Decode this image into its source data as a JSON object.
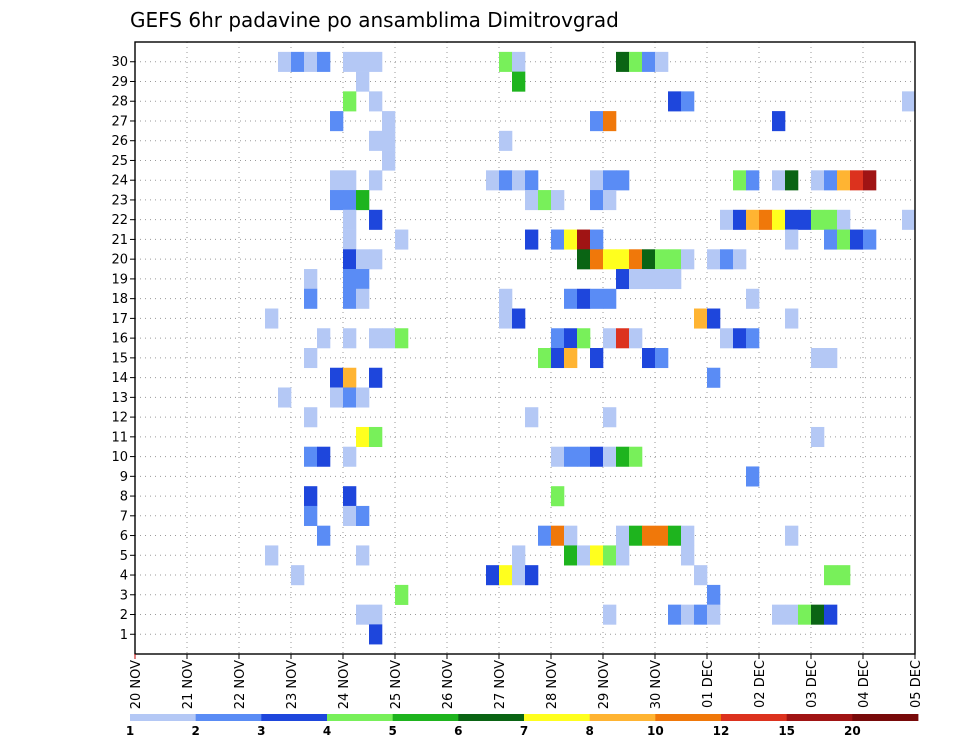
{
  "chart_data": {
    "type": "heatmap",
    "title": "GEFS 6hr padavine po ansamblima Dimitrovgrad",
    "y_ticks": [
      "1",
      "2",
      "3",
      "4",
      "5",
      "6",
      "7",
      "8",
      "9",
      "10",
      "11",
      "12",
      "13",
      "14",
      "15",
      "16",
      "17",
      "18",
      "19",
      "20",
      "21",
      "22",
      "23",
      "24",
      "25",
      "26",
      "27",
      "28",
      "29",
      "30"
    ],
    "x_ticks": [
      "20 NOV",
      "21 NOV",
      "22 NOV",
      "23 NOV",
      "24 NOV",
      "25 NOV",
      "26 NOV",
      "27 NOV",
      "28 NOV",
      "29 NOV",
      "30 NOV",
      "01 DEC",
      "02 DEC",
      "03 DEC",
      "04 DEC",
      "05 DEC"
    ],
    "xlim": [
      "20 NOV 00Z",
      "05 DEC 00Z"
    ],
    "ylim": [
      0,
      30
    ],
    "grid": true,
    "colorbar": {
      "bounds": [
        "1",
        "2",
        "3",
        "4",
        "5",
        "6",
        "7",
        "8",
        "10",
        "12",
        "15",
        "20"
      ],
      "colors": [
        "#b4c8f5",
        "#5a8cf5",
        "#1e46dc",
        "#78f05a",
        "#1eb41e",
        "#0a6414",
        "#ffff1e",
        "#ffb432",
        "#f0780a",
        "#dc321e",
        "#a01414",
        "#780a0a"
      ]
    },
    "cells": [
      {
        "m": 30,
        "t": [
          [
            11,
            1
          ],
          [
            12,
            2
          ],
          [
            13,
            1
          ],
          [
            14,
            2
          ],
          [
            16,
            1
          ],
          [
            17,
            1
          ],
          [
            18,
            1
          ],
          [
            28,
            4
          ],
          [
            29,
            1
          ],
          [
            37,
            6
          ],
          [
            38,
            4
          ],
          [
            39,
            2
          ],
          [
            40,
            1
          ]
        ]
      },
      {
        "m": 29,
        "t": [
          [
            17,
            1
          ],
          [
            29,
            5
          ]
        ]
      },
      {
        "m": 28,
        "t": [
          [
            16,
            4
          ],
          [
            18,
            1
          ],
          [
            41,
            3
          ],
          [
            42,
            2
          ],
          [
            59,
            1
          ]
        ]
      },
      {
        "m": 27,
        "t": [
          [
            15,
            2
          ],
          [
            19,
            1
          ],
          [
            35,
            2
          ],
          [
            36,
            9
          ],
          [
            49,
            3
          ]
        ]
      },
      {
        "m": 26,
        "t": [
          [
            18,
            1
          ],
          [
            19,
            1
          ],
          [
            28,
            1
          ]
        ]
      },
      {
        "m": 25,
        "t": [
          [
            19,
            1
          ]
        ]
      },
      {
        "m": 24,
        "t": [
          [
            15,
            1
          ],
          [
            16,
            1
          ],
          [
            18,
            1
          ],
          [
            27,
            1
          ],
          [
            28,
            2
          ],
          [
            29,
            1
          ],
          [
            30,
            2
          ],
          [
            35,
            1
          ],
          [
            36,
            2
          ],
          [
            37,
            2
          ],
          [
            46,
            4
          ],
          [
            47,
            2
          ],
          [
            49,
            1
          ],
          [
            50,
            6
          ],
          [
            52,
            1
          ],
          [
            53,
            2
          ],
          [
            54,
            8
          ],
          [
            55,
            10
          ],
          [
            56,
            11
          ]
        ]
      },
      {
        "m": 23,
        "t": [
          [
            15,
            2
          ],
          [
            16,
            2
          ],
          [
            17,
            5
          ],
          [
            30,
            1
          ],
          [
            31,
            4
          ],
          [
            32,
            1
          ],
          [
            35,
            2
          ],
          [
            36,
            1
          ]
        ]
      },
      {
        "m": 22,
        "t": [
          [
            16,
            1
          ],
          [
            18,
            3
          ],
          [
            45,
            1
          ],
          [
            46,
            3
          ],
          [
            47,
            8
          ],
          [
            48,
            9
          ],
          [
            49,
            7
          ],
          [
            50,
            3
          ],
          [
            51,
            3
          ],
          [
            52,
            4
          ],
          [
            53,
            4
          ],
          [
            54,
            1
          ],
          [
            59,
            1
          ]
        ]
      },
      {
        "m": 21,
        "t": [
          [
            16,
            1
          ],
          [
            20,
            1
          ],
          [
            30,
            3
          ],
          [
            32,
            2
          ],
          [
            33,
            7
          ],
          [
            34,
            11
          ],
          [
            35,
            2
          ],
          [
            50,
            1
          ],
          [
            53,
            2
          ],
          [
            54,
            4
          ],
          [
            55,
            3
          ],
          [
            56,
            2
          ]
        ]
      },
      {
        "m": 20,
        "t": [
          [
            16,
            3
          ],
          [
            17,
            1
          ],
          [
            18,
            1
          ],
          [
            34,
            6
          ],
          [
            35,
            9
          ],
          [
            36,
            7
          ],
          [
            37,
            7
          ],
          [
            38,
            9
          ],
          [
            39,
            6
          ],
          [
            40,
            4
          ],
          [
            41,
            4
          ],
          [
            42,
            1
          ],
          [
            44,
            1
          ],
          [
            45,
            2
          ],
          [
            46,
            1
          ]
        ]
      },
      {
        "m": 19,
        "t": [
          [
            13,
            1
          ],
          [
            16,
            2
          ],
          [
            17,
            2
          ],
          [
            37,
            3
          ],
          [
            38,
            1
          ],
          [
            39,
            1
          ],
          [
            40,
            1
          ],
          [
            41,
            1
          ]
        ]
      },
      {
        "m": 18,
        "t": [
          [
            13,
            2
          ],
          [
            16,
            2
          ],
          [
            17,
            1
          ],
          [
            28,
            1
          ],
          [
            33,
            2
          ],
          [
            34,
            3
          ],
          [
            35,
            2
          ],
          [
            36,
            2
          ],
          [
            47,
            1
          ]
        ]
      },
      {
        "m": 17,
        "t": [
          [
            10,
            1
          ],
          [
            28,
            1
          ],
          [
            29,
            3
          ],
          [
            43,
            8
          ],
          [
            44,
            3
          ],
          [
            50,
            1
          ]
        ]
      },
      {
        "m": 16,
        "t": [
          [
            14,
            1
          ],
          [
            16,
            1
          ],
          [
            18,
            1
          ],
          [
            19,
            1
          ],
          [
            20,
            4
          ],
          [
            32,
            2
          ],
          [
            33,
            3
          ],
          [
            34,
            4
          ],
          [
            36,
            1
          ],
          [
            37,
            10
          ],
          [
            38,
            1
          ],
          [
            45,
            1
          ],
          [
            46,
            3
          ],
          [
            47,
            2
          ]
        ]
      },
      {
        "m": 15,
        "t": [
          [
            13,
            1
          ],
          [
            31,
            4
          ],
          [
            32,
            3
          ],
          [
            33,
            8
          ],
          [
            35,
            3
          ],
          [
            39,
            3
          ],
          [
            40,
            2
          ],
          [
            52,
            1
          ],
          [
            53,
            1
          ]
        ]
      },
      {
        "m": 14,
        "t": [
          [
            15,
            3
          ],
          [
            16,
            8
          ],
          [
            18,
            3
          ],
          [
            44,
            2
          ]
        ]
      },
      {
        "m": 13,
        "t": [
          [
            11,
            1
          ],
          [
            15,
            1
          ],
          [
            16,
            2
          ],
          [
            17,
            1
          ]
        ]
      },
      {
        "m": 12,
        "t": [
          [
            13,
            1
          ],
          [
            30,
            1
          ],
          [
            36,
            1
          ]
        ]
      },
      {
        "m": 11,
        "t": [
          [
            17,
            7
          ],
          [
            18,
            4
          ],
          [
            52,
            1
          ]
        ]
      },
      {
        "m": 10,
        "t": [
          [
            13,
            2
          ],
          [
            14,
            3
          ],
          [
            16,
            1
          ],
          [
            32,
            1
          ],
          [
            33,
            2
          ],
          [
            34,
            2
          ],
          [
            35,
            3
          ],
          [
            36,
            1
          ],
          [
            37,
            5
          ],
          [
            38,
            4
          ]
        ]
      },
      {
        "m": 9,
        "t": [
          [
            47,
            2
          ]
        ]
      },
      {
        "m": 8,
        "t": [
          [
            13,
            3
          ],
          [
            16,
            3
          ],
          [
            32,
            4
          ]
        ]
      },
      {
        "m": 7,
        "t": [
          [
            13,
            2
          ],
          [
            16,
            1
          ],
          [
            17,
            2
          ]
        ]
      },
      {
        "m": 6,
        "t": [
          [
            14,
            2
          ],
          [
            31,
            2
          ],
          [
            32,
            9
          ],
          [
            33,
            1
          ],
          [
            37,
            1
          ],
          [
            38,
            5
          ],
          [
            39,
            9
          ],
          [
            40,
            9
          ],
          [
            41,
            5
          ],
          [
            42,
            1
          ],
          [
            50,
            1
          ]
        ]
      },
      {
        "m": 5,
        "t": [
          [
            10,
            1
          ],
          [
            17,
            1
          ],
          [
            29,
            1
          ],
          [
            33,
            5
          ],
          [
            34,
            1
          ],
          [
            35,
            7
          ],
          [
            36,
            4
          ],
          [
            37,
            1
          ],
          [
            42,
            1
          ]
        ]
      },
      {
        "m": 4,
        "t": [
          [
            12,
            1
          ],
          [
            27,
            3
          ],
          [
            28,
            7
          ],
          [
            29,
            1
          ],
          [
            30,
            3
          ],
          [
            43,
            1
          ],
          [
            53,
            4
          ],
          [
            54,
            4
          ]
        ]
      },
      {
        "m": 3,
        "t": [
          [
            20,
            4
          ],
          [
            44,
            2
          ]
        ]
      },
      {
        "m": 2,
        "t": [
          [
            17,
            1
          ],
          [
            18,
            1
          ],
          [
            36,
            1
          ],
          [
            41,
            2
          ],
          [
            42,
            1
          ],
          [
            43,
            2
          ],
          [
            44,
            1
          ],
          [
            49,
            1
          ],
          [
            50,
            1
          ],
          [
            51,
            4
          ],
          [
            52,
            6
          ],
          [
            53,
            3
          ]
        ]
      },
      {
        "m": 1,
        "t": [
          [
            18,
            3
          ]
        ]
      }
    ]
  }
}
